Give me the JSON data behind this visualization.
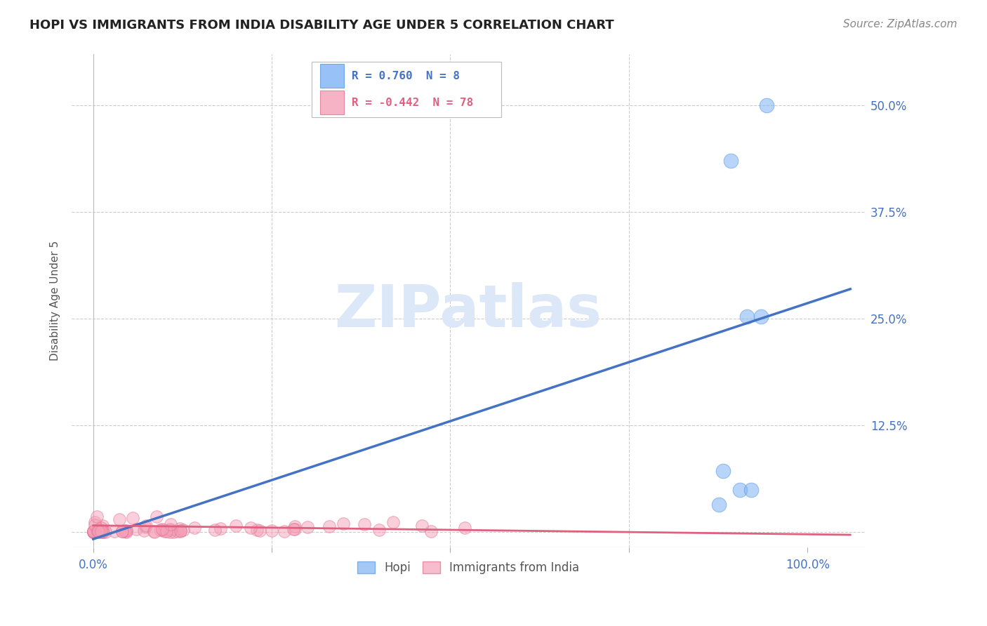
{
  "title": "HOPI VS IMMIGRANTS FROM INDIA DISABILITY AGE UNDER 5 CORRELATION CHART",
  "source": "Source: ZipAtlas.com",
  "ylabel": "Disability Age Under 5",
  "watermark": "ZIPatlas",
  "hopi_R": "0.760",
  "hopi_N": "8",
  "india_R": "-0.442",
  "india_N": "78",
  "hopi_scatter_x": [
    0.893,
    0.915,
    0.882,
    0.935,
    0.905,
    0.921,
    0.876,
    0.943
  ],
  "hopi_scatter_y": [
    0.435,
    0.253,
    0.072,
    0.253,
    0.05,
    0.05,
    0.032,
    0.5
  ],
  "hopi_line_x": [
    0.0,
    1.06
  ],
  "hopi_line_y": [
    -0.008,
    0.285
  ],
  "india_line_x": [
    0.0,
    1.06
  ],
  "india_line_y": [
    0.008,
    -0.003
  ],
  "hopi_color": "#7fb3f5",
  "hopi_edge_color": "#5a9ae0",
  "hopi_line_color": "#4472c4",
  "india_color": "#f5a0b8",
  "india_edge_color": "#e07090",
  "india_line_color": "#e06080",
  "xlim": [
    -0.03,
    1.08
  ],
  "ylim": [
    -0.018,
    0.56
  ],
  "xticks": [
    0.0,
    0.25,
    0.5,
    0.75,
    1.0
  ],
  "xticklabels": [
    "0.0%",
    "",
    "",
    "",
    "100.0%"
  ],
  "yticks": [
    0.0,
    0.125,
    0.25,
    0.375,
    0.5
  ],
  "yticklabels_right": [
    "",
    "12.5%",
    "25.0%",
    "37.5%",
    "50.0%"
  ],
  "background_color": "#ffffff",
  "grid_color": "#cccccc",
  "tick_color": "#4472c4",
  "title_fontsize": 13,
  "axis_label_fontsize": 11,
  "tick_fontsize": 12,
  "source_fontsize": 11,
  "watermark_fontsize": 60,
  "watermark_color": "#dce8f8"
}
